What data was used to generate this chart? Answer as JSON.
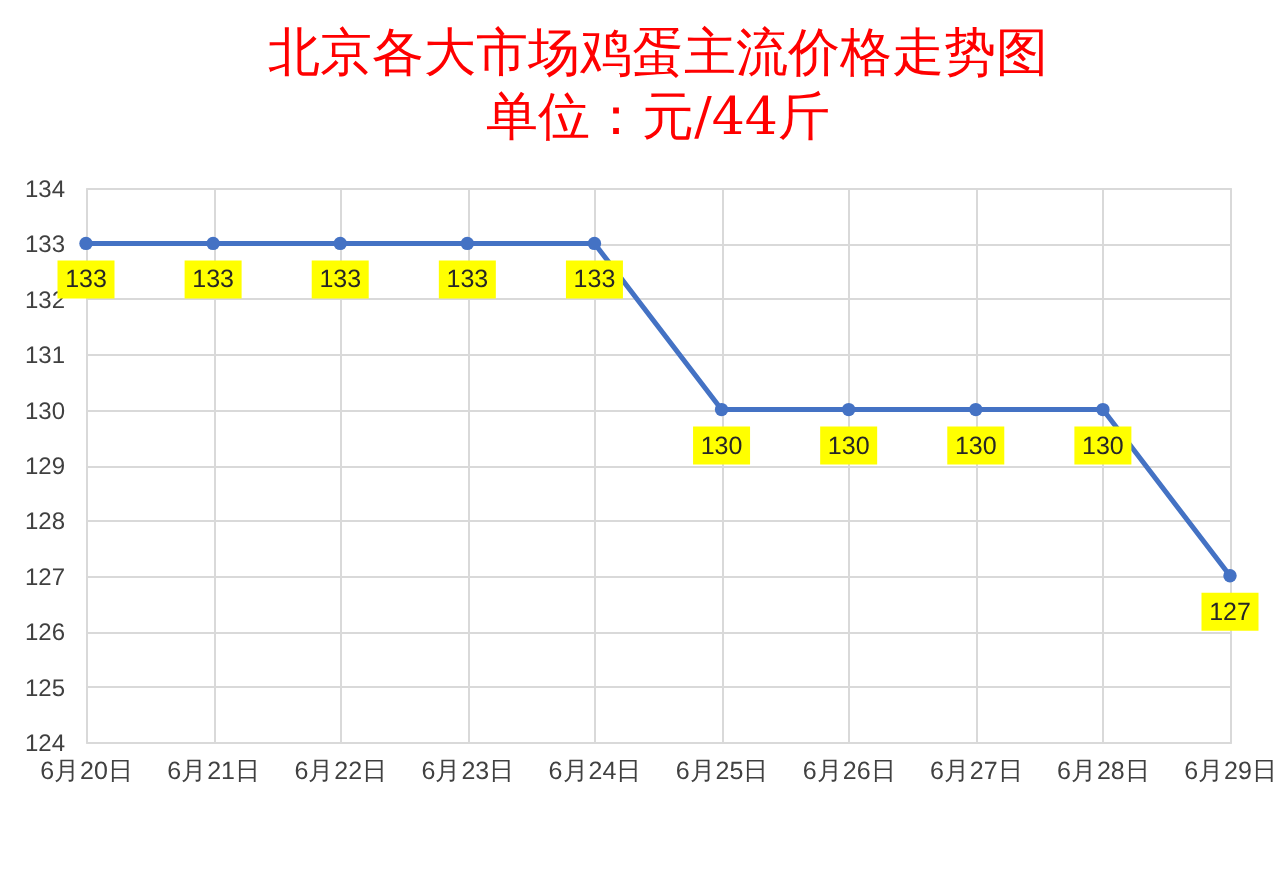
{
  "chart_data": {
    "type": "line",
    "title": "北京各大市场鸡蛋主流价格走势图",
    "subtitle": "单位：元/44斤",
    "categories": [
      "6月20日",
      "6月21日",
      "6月22日",
      "6月23日",
      "6月24日",
      "6月25日",
      "6月26日",
      "6月27日",
      "6月28日",
      "6月29日"
    ],
    "series": [
      {
        "color": "#4472c4",
        "values": [
          133,
          133,
          133,
          133,
          133,
          130,
          130,
          130,
          130,
          127
        ]
      }
    ],
    "ylim": [
      124,
      134
    ],
    "yticks": [
      124,
      125,
      126,
      127,
      128,
      129,
      130,
      131,
      132,
      133,
      134
    ],
    "grid": true,
    "marker": "circle",
    "line_style": "solid",
    "data_labels": true
  }
}
